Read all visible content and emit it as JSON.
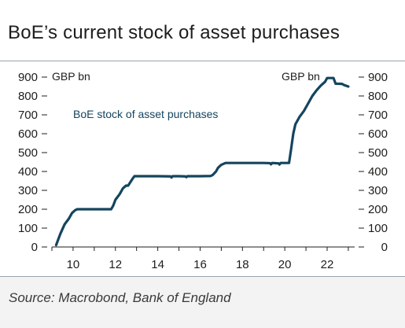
{
  "header": {
    "title": "BoE’s current stock of asset purchases"
  },
  "footer": {
    "source": "Source: Macrobond, Bank of England"
  },
  "chart_data": {
    "type": "line",
    "title": "BoE’s current stock of asset purchases",
    "left_axis_unit": "GBP bn",
    "right_axis_unit": "GBP bn",
    "xlim": [
      2009,
      2023.3
    ],
    "ylim": [
      0,
      900
    ],
    "x_ticks": [
      10,
      12,
      14,
      16,
      18,
      20,
      22
    ],
    "y_ticks": [
      0,
      100,
      200,
      300,
      400,
      500,
      600,
      700,
      800,
      900
    ],
    "grid": false,
    "legend": "inline-label",
    "series": [
      {
        "name": "BoE stock of asset purchases",
        "color": "#14455e",
        "points": [
          [
            2009.2,
            10
          ],
          [
            2009.4,
            70
          ],
          [
            2009.6,
            120
          ],
          [
            2009.8,
            150
          ],
          [
            2009.95,
            180
          ],
          [
            2010.1,
            195
          ],
          [
            2010.2,
            200
          ],
          [
            2011.0,
            200
          ],
          [
            2011.5,
            200
          ],
          [
            2011.8,
            200
          ],
          [
            2011.9,
            220
          ],
          [
            2012.0,
            250
          ],
          [
            2012.2,
            280
          ],
          [
            2012.35,
            310
          ],
          [
            2012.5,
            325
          ],
          [
            2012.6,
            325
          ],
          [
            2012.8,
            360
          ],
          [
            2012.9,
            375
          ],
          [
            2013.5,
            375
          ],
          [
            2014.0,
            375
          ],
          [
            2014.6,
            374
          ],
          [
            2014.65,
            368
          ],
          [
            2014.7,
            375
          ],
          [
            2015.0,
            375
          ],
          [
            2015.3,
            374
          ],
          [
            2015.35,
            370
          ],
          [
            2015.4,
            375
          ],
          [
            2016.0,
            375
          ],
          [
            2016.5,
            376
          ],
          [
            2016.6,
            382
          ],
          [
            2016.75,
            400
          ],
          [
            2016.85,
            420
          ],
          [
            2017.0,
            435
          ],
          [
            2017.2,
            445
          ],
          [
            2018.0,
            445
          ],
          [
            2018.5,
            445
          ],
          [
            2019.0,
            445
          ],
          [
            2019.3,
            444
          ],
          [
            2019.35,
            438
          ],
          [
            2019.4,
            445
          ],
          [
            2019.7,
            443
          ],
          [
            2019.75,
            437
          ],
          [
            2019.8,
            445
          ],
          [
            2020.2,
            445
          ],
          [
            2020.3,
            520
          ],
          [
            2020.4,
            600
          ],
          [
            2020.5,
            650
          ],
          [
            2020.7,
            690
          ],
          [
            2020.9,
            720
          ],
          [
            2021.1,
            760
          ],
          [
            2021.3,
            800
          ],
          [
            2021.5,
            830
          ],
          [
            2021.7,
            855
          ],
          [
            2021.9,
            875
          ],
          [
            2022.0,
            895
          ],
          [
            2022.3,
            895
          ],
          [
            2022.4,
            865
          ],
          [
            2022.7,
            864
          ],
          [
            2022.8,
            858
          ],
          [
            2023.0,
            850
          ]
        ]
      }
    ]
  }
}
